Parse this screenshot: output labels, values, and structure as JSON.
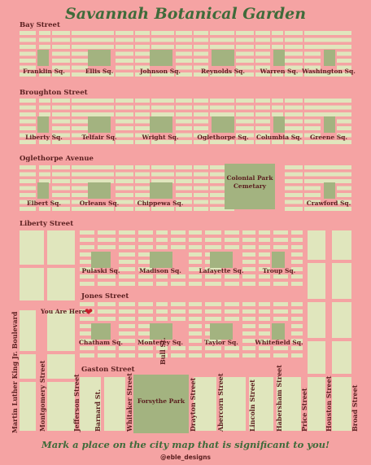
{
  "title": "Savannah Botanical Garden",
  "colors": {
    "background": "#f5a3a3",
    "block": "#e0e6bd",
    "square": "#a3b380",
    "title": "#3f6b3a",
    "label": "#5a1f1f",
    "heart": "#c81e2a"
  },
  "horizontal_streets": {
    "bay": "Bay Street",
    "broughton": "Broughton Street",
    "oglethorpe": "Oglethorpe Avenue",
    "liberty": "Liberty Street",
    "jones": "Jones Street",
    "gaston": "Gaston Street"
  },
  "vertical_streets": {
    "mlk": "Martin Luther King Jr. Boulevard",
    "montgomery": "Montgomery Street",
    "jefferson": "Jefferson Street",
    "barnard": "Barnard St.",
    "whitaker": "Whitaker Street",
    "bull": "Bull St.",
    "drayton": "Drayton Street",
    "abercorn": "Abercorn Street",
    "lincoln": "Lincoln Street",
    "habersham": "Habersham Street",
    "price": "Price Street",
    "houston": "Houston Street",
    "broad": "Broad Street"
  },
  "squares": {
    "franklin": "Franklin Sq.",
    "ellis": "Ellis Sq.",
    "johnson": "Johnson Sq.",
    "reynolds": "Reynolds Sq.",
    "warren": "Warren Sq.",
    "washington": "Washington Sq.",
    "liberty": "Liberty Sq.",
    "telfair": "Telfair Sq.",
    "wright": "Wright Sq.",
    "oglethorpe": "Oglethorpe Sq.",
    "columbia": "Columbia Sq.",
    "greene": "Greene Sq.",
    "elbert": "Elbert Sq.",
    "orleans": "Orleans Sq.",
    "chippewa": "Chippewa Sq.",
    "crawford": "Crawford Sq.",
    "pulaski": "Pulaski Sq.",
    "madison": "Madison Sq.",
    "lafayette": "Lafayette Sq.",
    "troup": "Troup Sq.",
    "chatham": "Chatham Sq.",
    "monterey": "Monterey Sq.",
    "taylor": "Taylor Sq.",
    "whitefield": "Whitefield Sq."
  },
  "parks": {
    "colonial": "Colonial Park Cemetary",
    "forsythe": "Forsythe Park"
  },
  "marker": {
    "label": "You Are Here!",
    "icon": "heart-icon"
  },
  "footer": "Mark a place on the city map that is significant to you!",
  "credit": "@eble_designs"
}
